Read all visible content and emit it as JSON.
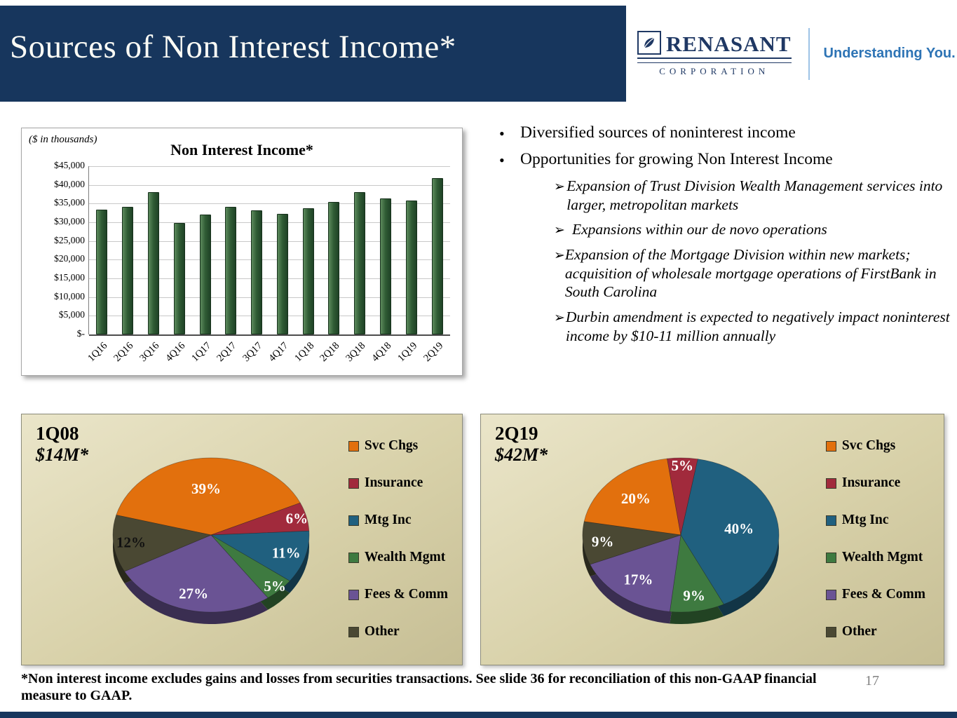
{
  "header": {
    "title": "Sources of Non Interest Income*",
    "background_color": "#17365D",
    "logo": {
      "name": "RENASANT",
      "subtext": "CORPORATION",
      "tagline": "Understanding You.",
      "brand_color": "#1F3864",
      "tagline_color": "#2E74B5"
    }
  },
  "bullets": {
    "marker": "•",
    "sub_marker": "➢",
    "items": [
      {
        "text": "Diversified sources of noninterest income",
        "subs": []
      },
      {
        "text": "Opportunities for growing Non Interest Income",
        "subs": [
          "Expansion of Trust Division Wealth Management services into larger, metropolitan markets",
          "Expansions within our de novo operations",
          "Expansion of the Mortgage Division within new markets; acquisition of wholesale mortgage operations of FirstBank in South Carolina",
          "Durbin amendment is expected to negatively impact noninterest income by $10-11 million annually"
        ]
      }
    ]
  },
  "chart_data": [
    {
      "id": "non-interest-income-bar",
      "type": "bar",
      "title": "Non Interest Income*",
      "units_note": "($ in thousands)",
      "categories": [
        "1Q16",
        "2Q16",
        "3Q16",
        "4Q16",
        "1Q17",
        "2Q17",
        "3Q17",
        "4Q17",
        "1Q18",
        "2Q18",
        "3Q18",
        "4Q18",
        "1Q19",
        "2Q19"
      ],
      "values": [
        33300,
        34200,
        38100,
        29900,
        32000,
        34100,
        33200,
        32300,
        33700,
        35500,
        38000,
        36300,
        35800,
        41800
      ],
      "xlabel": "",
      "ylabel": "",
      "ylim": [
        0,
        45000
      ],
      "ytick_step": 5000,
      "ytick_labels": [
        "$-",
        "$5,000",
        "$10,000",
        "$15,000",
        "$20,000",
        "$25,000",
        "$30,000",
        "$35,000",
        "$40,000",
        "$45,000"
      ],
      "bar_color": "#2F5B34",
      "grid": true,
      "legend_position": "none"
    },
    {
      "id": "pie-1q08",
      "type": "pie",
      "title": "1Q08",
      "subtitle": "$14M*",
      "labels": [
        "Svc Chgs",
        "Insurance",
        "Mtg Inc",
        "Wealth Mgmt",
        "Fees & Comm",
        "Other"
      ],
      "values": [
        39,
        6,
        11,
        5,
        27,
        12
      ],
      "data_labels": [
        "39%",
        "6%",
        "11%",
        "5%",
        "27%",
        "12%"
      ],
      "colors": [
        "#E2700D",
        "#A12A3C",
        "#20607F",
        "#3E7A40",
        "#6A5394",
        "#4A4833"
      ],
      "label_colors": [
        "#FFFFFF",
        "#FFFFFF",
        "#FFFFFF",
        "#FFFFFF",
        "#FFFFFF",
        "#111111"
      ],
      "label_radius": [
        0.6,
        0.9,
        0.8,
        0.93,
        0.78,
        0.82
      ],
      "start_angle_deg": -75,
      "legend_position": "right"
    },
    {
      "id": "pie-2q19",
      "type": "pie",
      "title": "2Q19",
      "subtitle": "$42M*",
      "labels": [
        "Svc Chgs",
        "Insurance",
        "Mtg Inc",
        "Wealth Mgmt",
        "Fees & Comm",
        "Other"
      ],
      "values": [
        20,
        5,
        40,
        9,
        17,
        9
      ],
      "data_labels": [
        "20%",
        "5%",
        "40%",
        "9%",
        "17%",
        "9%"
      ],
      "colors": [
        "#E2700D",
        "#A12A3C",
        "#20607F",
        "#3E7A40",
        "#6A5394",
        "#4A4833"
      ],
      "label_colors": [
        "#FFFFFF",
        "#FFFFFF",
        "#FFFFFF",
        "#FFFFFF",
        "#FFFFFF",
        "#FFFFFF"
      ],
      "label_radius": [
        0.66,
        0.9,
        0.6,
        0.8,
        0.72,
        0.8
      ],
      "start_angle_deg": -80,
      "legend_position": "right"
    }
  ],
  "footnote": "*Non interest income excludes gains and losses from securities transactions.  See slide 36 for reconciliation of this non-GAAP financial measure to GAAP.",
  "page_number": "17"
}
